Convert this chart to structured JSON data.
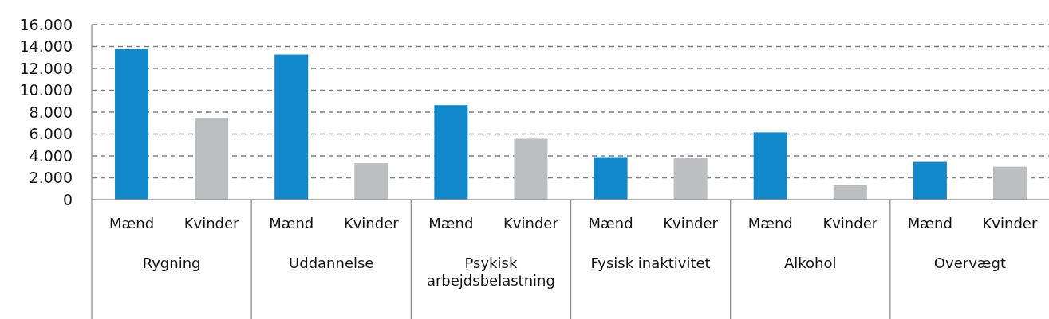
{
  "chart_data": {
    "type": "bar",
    "categories": [
      "Mænd",
      "Kvinder",
      "Mænd",
      "Kvinder",
      "Mænd",
      "Kvinder",
      "Mænd",
      "Kvinder",
      "Mænd",
      "Kvinder",
      "Mænd",
      "Kvinder"
    ],
    "values": [
      13780,
      7480,
      13270,
      3340,
      8640,
      5570,
      3890,
      3830,
      6150,
      1320,
      3450,
      3010
    ],
    "colors": [
      "#1088ca",
      "#bdbec0",
      "#1088ca",
      "#bdbec0",
      "#1088ca",
      "#bdbec0",
      "#1088ca",
      "#bdbec0",
      "#1088ca",
      "#bdbec0",
      "#1088ca",
      "#bdbec0"
    ],
    "ylim": [
      0,
      16000
    ],
    "yticks": [
      0,
      {
        "value": 2000,
        "label": "2.000"
      },
      {
        "value": 4000,
        "label": "4.000"
      },
      {
        "value": 6000,
        "label": "6.000"
      },
      {
        "value": 8000,
        "label": "8.000"
      },
      {
        "value": 10000,
        "label": "10.000"
      },
      {
        "value": 12000,
        "label": "12.000"
      },
      {
        "value": 14000,
        "label": "14.000"
      },
      {
        "value": 16000,
        "label": "16.000"
      }
    ],
    "grid": "y",
    "annotations": [
      "Rygning",
      "Uddannelse",
      "Psykisk arbejdsbelastning",
      "Fysisk inaktivitet",
      "Alkohol",
      "Overvægt"
    ]
  }
}
